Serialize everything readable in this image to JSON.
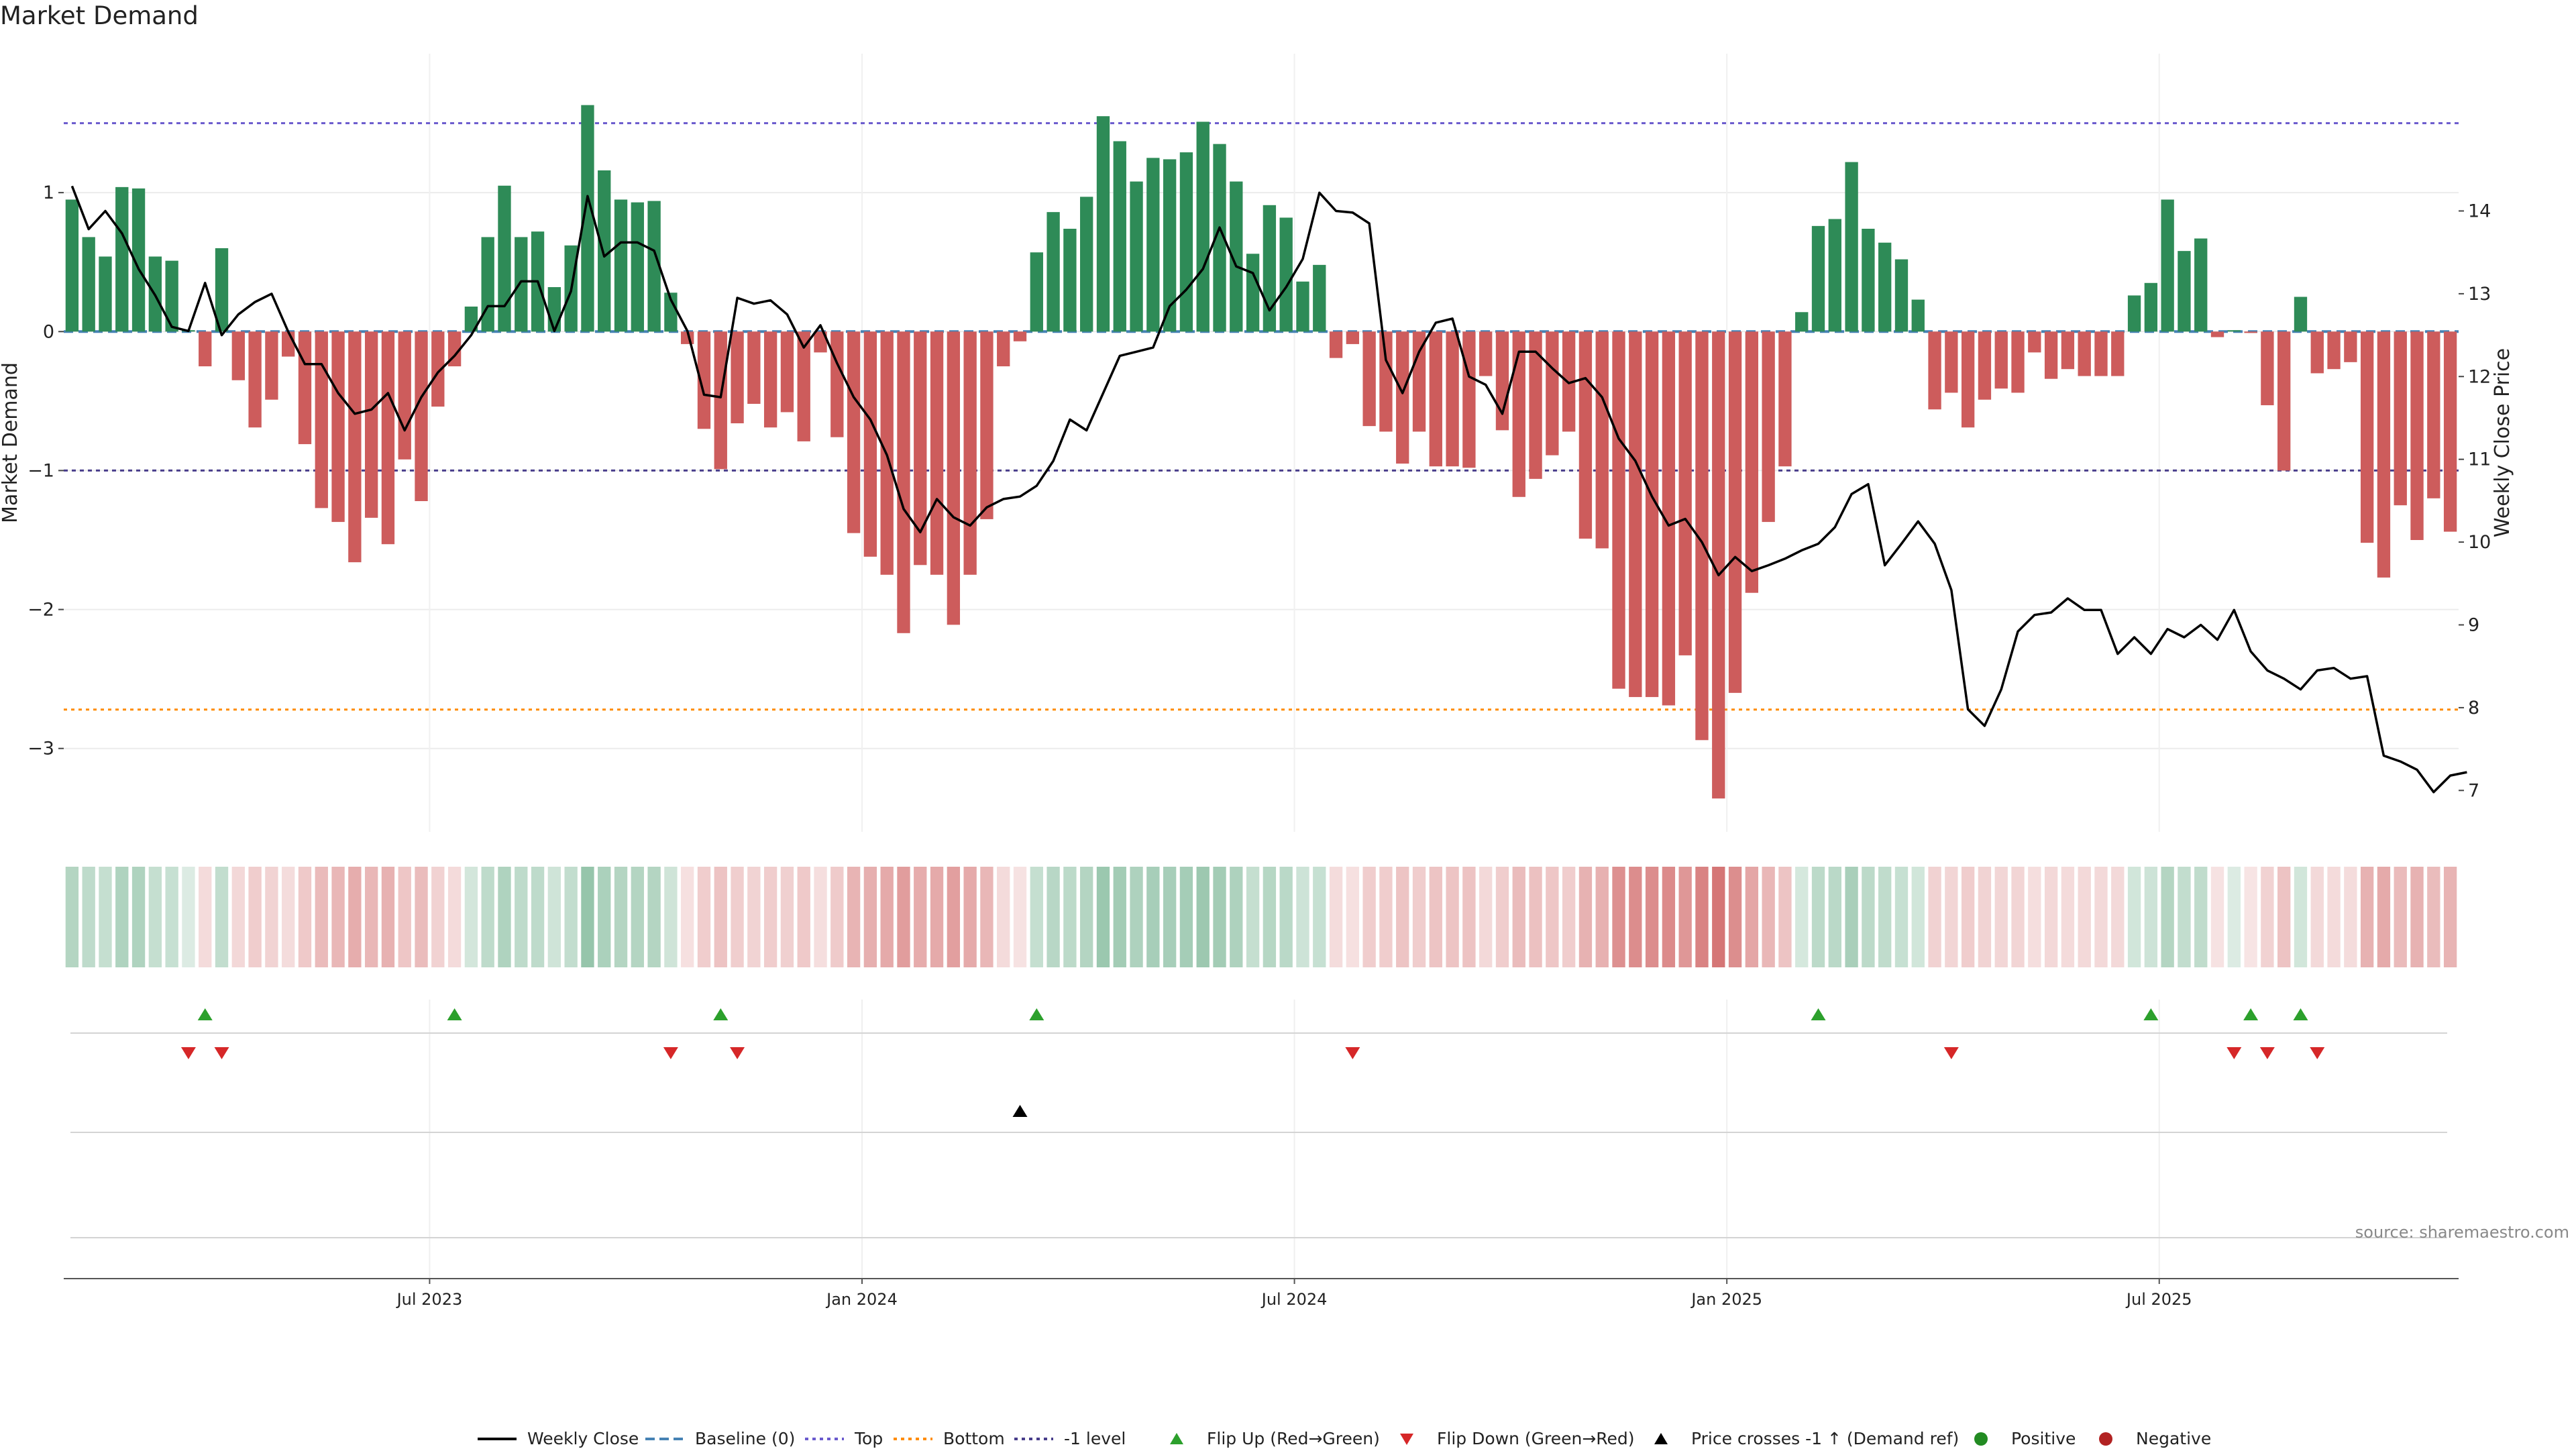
{
  "title": "Market Demand",
  "source": "source: sharemaestro.com",
  "colors": {
    "green": "#2e8b57",
    "red": "#cd5c5c",
    "price": "#000000",
    "top": "#6a5acd",
    "bottom": "#ff8c00",
    "minus1": "#483d8b",
    "baseline": "#4682b4",
    "flip_up": "#2ca02c",
    "flip_down": "#d62728",
    "positive": "#228b22",
    "negative": "#b22222"
  },
  "chart_data": {
    "type": "bar+line",
    "title": "Market Demand",
    "ylabel": "Market Demand",
    "y2label": "Weekly Close Price",
    "ylim": [
      -3.6,
      2.0
    ],
    "y2lim": [
      6.5,
      15.9
    ],
    "yticks": [
      1,
      0,
      -1,
      -2,
      -3
    ],
    "y2ticks": [
      14,
      13,
      12,
      11,
      10,
      9,
      8,
      7
    ],
    "xticks": [
      "Jul 2023",
      "Jan 2024",
      "Jul 2024",
      "Jan 2025",
      "Jul 2025"
    ],
    "xtick_index": [
      22,
      48,
      74,
      100,
      126
    ],
    "levels": {
      "top": 1.5,
      "bottom": -2.72,
      "minus1": -1.0,
      "baseline": 0
    },
    "demand": [
      0.95,
      0.68,
      0.54,
      1.04,
      1.03,
      0.54,
      0.51,
      0.01,
      -0.25,
      0.6,
      -0.35,
      -0.69,
      -0.49,
      -0.18,
      -0.81,
      -1.27,
      -1.37,
      -1.66,
      -1.34,
      -1.53,
      -0.92,
      -1.22,
      -0.54,
      -0.25,
      0.18,
      0.68,
      1.05,
      0.68,
      0.72,
      0.32,
      0.62,
      1.63,
      1.16,
      0.95,
      0.93,
      0.94,
      0.28,
      -0.09,
      -0.7,
      -0.99,
      -0.66,
      -0.52,
      -0.69,
      -0.58,
      -0.79,
      -0.15,
      -0.76,
      -1.45,
      -1.62,
      -1.75,
      -2.17,
      -1.68,
      -1.75,
      -2.11,
      -1.75,
      -1.35,
      -0.25,
      -0.07,
      0.57,
      0.86,
      0.74,
      0.97,
      1.55,
      1.37,
      1.08,
      1.25,
      1.24,
      1.29,
      1.51,
      1.35,
      1.08,
      0.56,
      0.91,
      0.82,
      0.36,
      0.48,
      -0.19,
      -0.09,
      -0.68,
      -0.72,
      -0.95,
      -0.72,
      -0.97,
      -0.97,
      -0.98,
      -0.32,
      -0.71,
      -1.19,
      -1.06,
      -0.89,
      -0.72,
      -1.49,
      -1.56,
      -2.57,
      -2.63,
      -2.63,
      -2.69,
      -2.33,
      -2.94,
      -3.36,
      -2.6,
      -1.88,
      -1.37,
      -0.97,
      0.14,
      0.76,
      0.81,
      1.22,
      0.74,
      0.64,
      0.52,
      0.23,
      -0.56,
      -0.44,
      -0.69,
      -0.49,
      -0.41,
      -0.44,
      -0.15,
      -0.34,
      -0.27,
      -0.32,
      -0.32,
      -0.32,
      0.26,
      0.35,
      0.95,
      0.58,
      0.67,
      -0.04,
      0.01,
      -0.01,
      -0.53,
      -1.0,
      0.25,
      -0.3,
      -0.27,
      -0.22,
      -1.52,
      -1.77,
      -1.25,
      -1.5,
      -1.2,
      -1.44
    ],
    "price": [
      14.3,
      13.78,
      14.0,
      13.73,
      13.3,
      12.98,
      12.6,
      12.55,
      13.13,
      12.5,
      12.75,
      12.9,
      13.0,
      12.54,
      12.15,
      12.15,
      11.8,
      11.55,
      11.6,
      11.8,
      11.35,
      11.75,
      12.05,
      12.25,
      12.5,
      12.85,
      12.85,
      13.15,
      13.15,
      12.55,
      13.03,
      14.18,
      13.45,
      13.62,
      13.62,
      13.52,
      12.93,
      12.55,
      11.78,
      11.75,
      12.95,
      12.88,
      12.92,
      12.75,
      12.35,
      12.62,
      12.16,
      11.75,
      11.48,
      11.05,
      10.4,
      10.12,
      10.52,
      10.3,
      10.2,
      10.42,
      10.52,
      10.55,
      10.68,
      10.98,
      11.48,
      11.35,
      11.8,
      12.25,
      12.3,
      12.35,
      12.85,
      13.05,
      13.3,
      13.8,
      13.33,
      13.25,
      12.8,
      13.08,
      13.42,
      14.22,
      14.0,
      13.98,
      13.85,
      12.2,
      11.8,
      12.3,
      12.65,
      12.7,
      12.0,
      11.9,
      11.55,
      12.3,
      12.3,
      12.1,
      11.92,
      11.98,
      11.75,
      11.25,
      10.98,
      10.55,
      10.2,
      10.28,
      10.0,
      9.6,
      9.82,
      9.65,
      9.72,
      9.8,
      9.9,
      9.98,
      10.18,
      10.58,
      10.7,
      9.72,
      9.98,
      10.25,
      9.98,
      9.42,
      7.98,
      7.78,
      8.22,
      8.92,
      9.12,
      9.15,
      9.32,
      9.18,
      9.18,
      8.65,
      8.85,
      8.65,
      8.95,
      8.85,
      9.0,
      8.82,
      9.18,
      8.68,
      8.45,
      8.35,
      8.22,
      8.45,
      8.48,
      8.35,
      8.38,
      7.42,
      7.35,
      7.25,
      6.98,
      7.18,
      7.22
    ],
    "heatmap_label": "demand intensity",
    "events": {
      "flip_up": [
        8,
        23,
        39,
        58,
        105,
        125,
        131,
        134
      ],
      "flip_down": [
        7,
        9,
        36,
        40,
        77,
        113,
        130,
        132,
        135
      ],
      "price_cross_up": [
        57
      ],
      "positive": [],
      "negative": []
    },
    "legend": [
      "Weekly Close",
      "Baseline (0)",
      "Top",
      "Bottom",
      "-1 level",
      "Flip Up (Red→Green)",
      "Flip Down (Green→Red)",
      "Price crosses -1 ↑ (Demand ref)",
      "Positive",
      "Negative"
    ]
  }
}
